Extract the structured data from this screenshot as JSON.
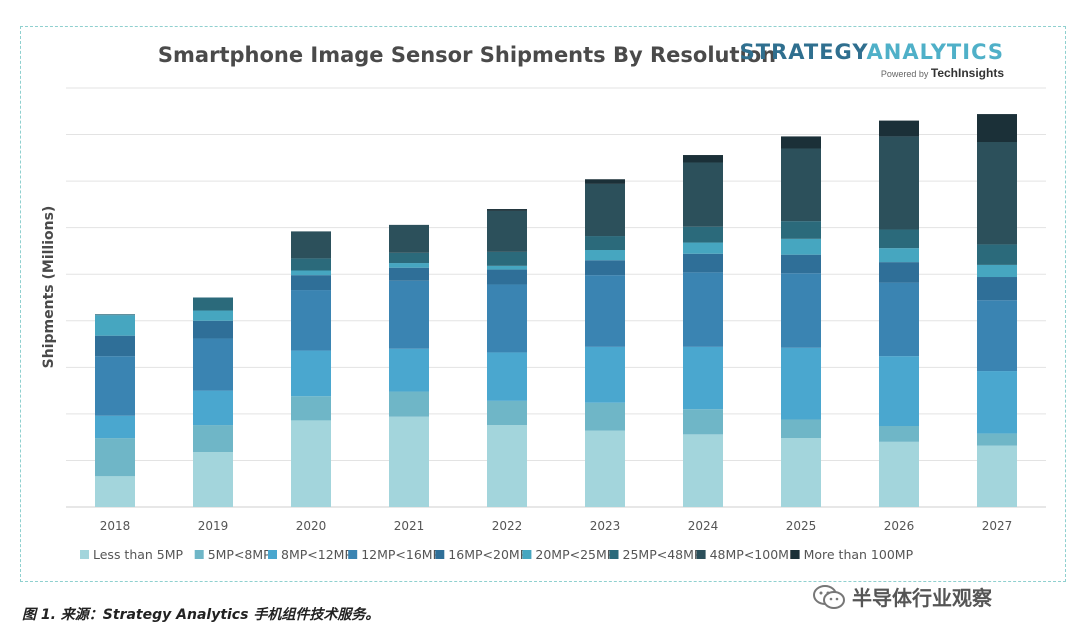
{
  "chart_data": {
    "type": "bar",
    "stacked": true,
    "title": "Smartphone Image Sensor Shipments By Resolution",
    "xlabel": "",
    "ylabel": "Shipments (Millions)",
    "ylim": [
      0,
      4500
    ],
    "grid": true,
    "legend_position": "bottom",
    "categories": [
      "2018",
      "2019",
      "2020",
      "2021",
      "2022",
      "2023",
      "2024",
      "2025",
      "2026",
      "2027"
    ],
    "series": [
      {
        "name": "Less than 5MP",
        "color": "#a3d5dc",
        "values": [
          330,
          590,
          930,
          970,
          880,
          820,
          780,
          740,
          700,
          660
        ]
      },
      {
        "name": "5MP<8MP",
        "color": "#6fb6c7",
        "values": [
          410,
          290,
          260,
          270,
          260,
          300,
          270,
          200,
          170,
          130
        ]
      },
      {
        "name": "8MP<12MP",
        "color": "#4aa7cf",
        "values": [
          240,
          370,
          490,
          460,
          520,
          600,
          670,
          770,
          750,
          670
        ]
      },
      {
        "name": "12MP<16MP",
        "color": "#3a84b2",
        "values": [
          640,
          560,
          650,
          730,
          730,
          770,
          800,
          800,
          790,
          760
        ]
      },
      {
        "name": "16MP<20MP",
        "color": "#2f6f98",
        "values": [
          220,
          190,
          160,
          140,
          160,
          160,
          200,
          200,
          220,
          250
        ]
      },
      {
        "name": "20MP<25MP",
        "color": "#46a6c0",
        "values": [
          220,
          110,
          50,
          50,
          40,
          110,
          120,
          170,
          150,
          130
        ]
      },
      {
        "name": "25MP<48MP",
        "color": "#2b6a7b",
        "values": [
          10,
          140,
          130,
          110,
          150,
          150,
          170,
          190,
          200,
          220
        ]
      },
      {
        "name": "48MP<100MP",
        "color": "#2c505b",
        "values": [
          0,
          0,
          290,
          300,
          440,
          560,
          690,
          780,
          1000,
          1100
        ]
      },
      {
        "name": "More than 100MP",
        "color": "#1b3038",
        "values": [
          0,
          0,
          0,
          0,
          20,
          50,
          80,
          130,
          170,
          300
        ]
      }
    ]
  },
  "logo": {
    "brand_part1": "STRATEGY",
    "brand_part2": "ANALYTICS",
    "powered_prefix": "Powered by",
    "powered_brand": "TechInsights"
  },
  "caption": "图 1. 来源：Strategy Analytics 手机组件技术服务。",
  "watermark": "半导体行业观察"
}
